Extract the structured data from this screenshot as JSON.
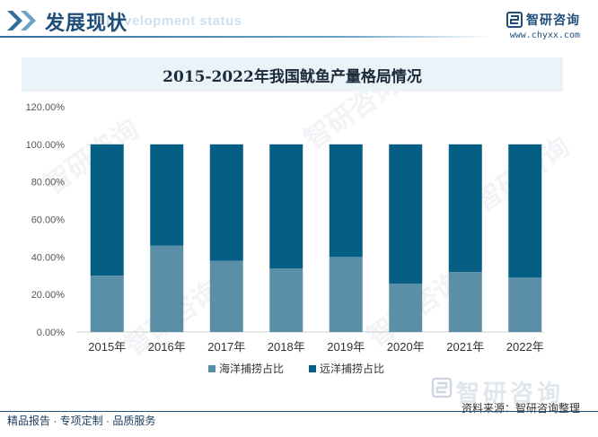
{
  "header": {
    "title": "发展现状",
    "subtitle": "Development status",
    "brand_name": "智研咨询",
    "brand_url": "www.chyxx.com"
  },
  "colors": {
    "series_sea": "#5b8fa8",
    "series_ocean": "#055f84",
    "accent": "#1f4e79"
  },
  "chart_data": {
    "type": "bar",
    "stacked": true,
    "title": "2015-2022年我国鱿鱼产量格局情况",
    "categories": [
      "2015年",
      "2016年",
      "2017年",
      "2018年",
      "2019年",
      "2020年",
      "2021年",
      "2022年"
    ],
    "series": [
      {
        "name": "海洋捕捞占比",
        "values": [
          30.0,
          46.0,
          38.0,
          33.8,
          40.0,
          25.8,
          32.0,
          29.0
        ]
      },
      {
        "name": "远洋捕捞占比",
        "values": [
          70.0,
          54.0,
          62.0,
          66.2,
          60.0,
          74.2,
          68.0,
          71.0
        ]
      }
    ],
    "ylim": [
      0,
      120
    ],
    "yticks": [
      "0.00%",
      "20.00%",
      "40.00%",
      "60.00%",
      "80.00%",
      "100.00%",
      "120.00%"
    ],
    "legend_position": "bottom",
    "grid": false
  },
  "footer": {
    "source": "资料来源：智研咨询整理",
    "source_watermark": "智研咨询",
    "services": "精品报告 · 专项定制 · 品质服务"
  },
  "watermark": "智研咨询"
}
